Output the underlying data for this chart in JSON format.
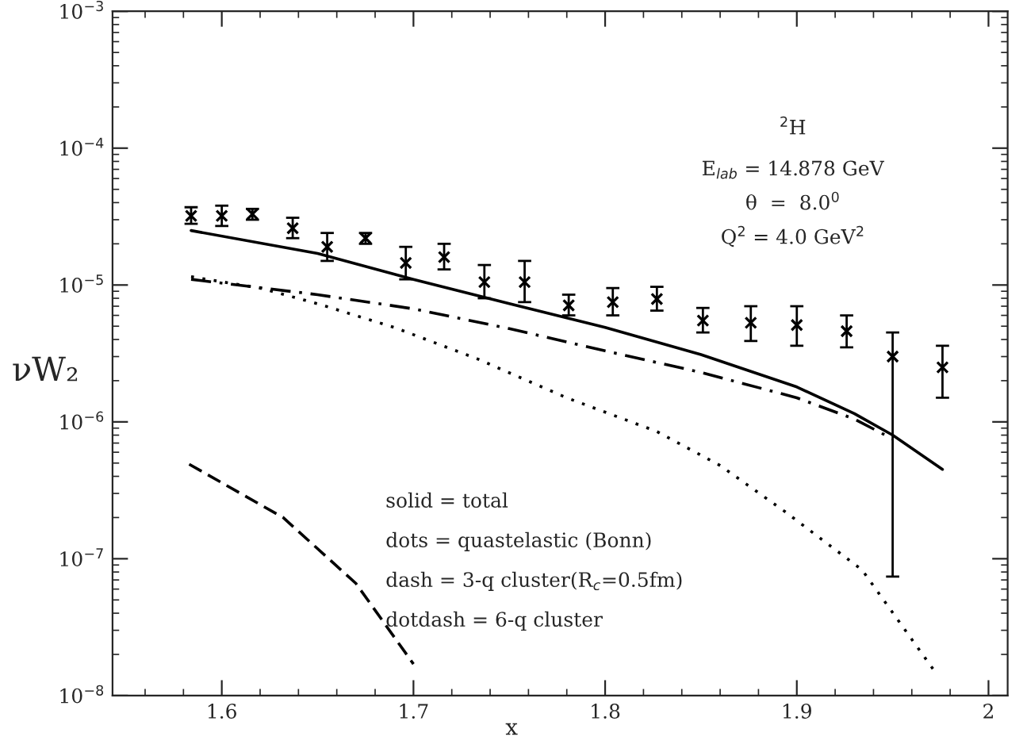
{
  "chart_data": {
    "type": "line",
    "xlabel": "x",
    "ylabel": "νW₂",
    "log": "y",
    "legend": false,
    "grid": false,
    "xlim": [
      1.543,
      2.01
    ],
    "xticks": [
      1.6,
      1.7,
      1.8,
      1.9,
      2
    ],
    "ylim": [
      1e-08,
      0.001
    ],
    "yticks": [
      {
        "value": 1e-08,
        "label": "10$^{−8}$"
      },
      {
        "value": 1e-07,
        "label": "10$^{−7}$"
      },
      {
        "value": 1e-06,
        "label": "10$^{−6}$"
      },
      {
        "value": 1e-05,
        "label": "10$^{−5}$"
      },
      {
        "value": 0.0001,
        "label": "10$^{−4}$"
      },
      {
        "value": 0.001,
        "label": "10$^{−3}$"
      }
    ],
    "annotations": [
      "$^{2}$H",
      "E$_{lab}$ = 14.878 GeV",
      "θ  =  8.0$^{0}$",
      "Q$^{2}$ = 4.0 GeV$^{2}$",
      "solid = total",
      "dots = quastelastic (Bonn)",
      "dash = 3-q cluster(R$_{c}$=0.5fm)",
      "dotdash = 6-q cluster"
    ],
    "series": [
      {
        "type": "scatter",
        "marker": "cross",
        "color": "#000000",
        "x": [
          1.584,
          1.6,
          1.616,
          1.637,
          1.655,
          1.675,
          1.696,
          1.716,
          1.737,
          1.758,
          1.781,
          1.804,
          1.827,
          1.851,
          1.876,
          1.9,
          1.926,
          1.95,
          1.976
        ],
        "values": [
          3.2e-05,
          3.2e-05,
          3.3e-05,
          2.6e-05,
          1.9e-05,
          2.2e-05,
          1.45e-05,
          1.6e-05,
          1.05e-05,
          1.05e-05,
          7.1e-06,
          7.5e-06,
          7.9e-06,
          5.5e-06,
          5.3e-06,
          5.1e-06,
          4.6e-06,
          3e-06,
          2.5e-06
        ],
        "errors": [
          [
            2.8e-05,
            3.7e-05
          ],
          [
            2.7e-05,
            3.8e-05
          ],
          [
            3e-05,
            3.6e-05
          ],
          [
            2.2e-05,
            3.1e-05
          ],
          [
            1.5e-05,
            2.4e-05
          ],
          [
            2e-05,
            2.4e-05
          ],
          [
            1.1e-05,
            1.9e-05
          ],
          [
            1.3e-05,
            2e-05
          ],
          [
            8e-06,
            1.4e-05
          ],
          [
            7.5e-06,
            1.5e-05
          ],
          [
            6e-06,
            8.5e-06
          ],
          [
            6e-06,
            9.5e-06
          ],
          [
            6.5e-06,
            9.7e-06
          ],
          [
            4.5e-06,
            6.8e-06
          ],
          [
            3.9e-06,
            7e-06
          ],
          [
            3.6e-06,
            7e-06
          ],
          [
            3.5e-06,
            6e-06
          ],
          [
            7.4e-08,
            4.5e-06
          ],
          [
            1.5e-06,
            3.6e-06
          ]
        ]
      },
      {
        "line_style": "solid",
        "color": "#000000",
        "x": [
          1.584,
          1.65,
          1.7,
          1.75,
          1.8,
          1.85,
          1.9,
          1.93,
          1.95,
          1.976
        ],
        "values": [
          2.5e-05,
          1.7e-05,
          1.1e-05,
          7.3e-06,
          4.9e-06,
          3.1e-06,
          1.8e-06,
          1.15e-06,
          8e-07,
          4.5e-07
        ]
      },
      {
        "line_style": "dotted",
        "color": "#000000",
        "x": [
          1.584,
          1.62,
          1.65,
          1.69,
          1.733,
          1.78,
          1.827,
          1.86,
          1.894,
          1.934,
          1.972
        ],
        "values": [
          1.15e-05,
          9.5e-06,
          7.3e-06,
          4.9e-06,
          2.9e-06,
          1.5e-06,
          8.5e-07,
          4.8e-07,
          2.2e-07,
          8.3e-08,
          1.5e-08
        ]
      },
      {
        "line_style": "dashed",
        "color": "#000000",
        "x": [
          1.583,
          1.632,
          1.67,
          1.7
        ],
        "values": [
          4.9e-07,
          2e-07,
          6.6e-08,
          1.7e-08
        ]
      },
      {
        "line_style": "dashdot",
        "color": "#000000",
        "x": [
          1.584,
          1.65,
          1.7,
          1.75,
          1.8,
          1.85,
          1.9,
          1.93,
          1.95
        ],
        "values": [
          1.1e-05,
          8.5e-06,
          6.7e-06,
          4.8e-06,
          3.3e-06,
          2.3e-06,
          1.5e-06,
          1.05e-06,
          7.5e-07
        ]
      }
    ]
  }
}
